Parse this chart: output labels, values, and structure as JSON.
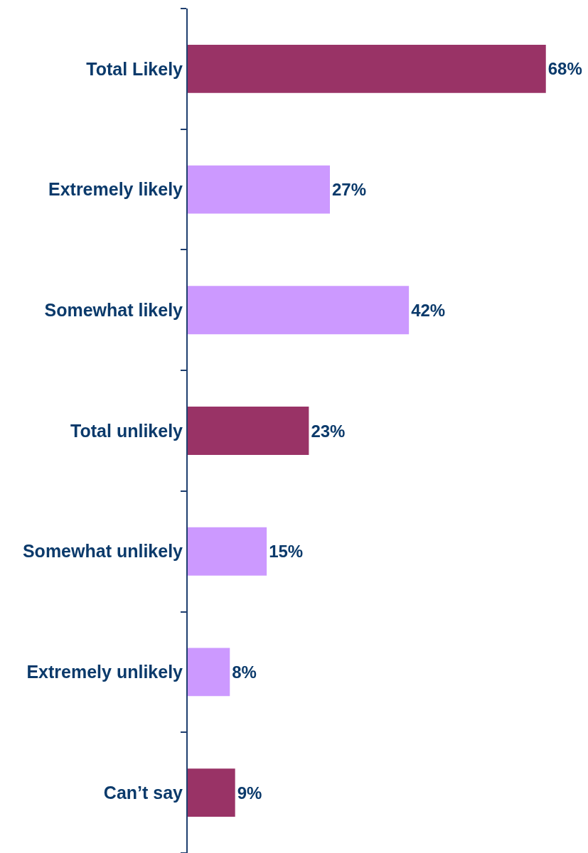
{
  "chart_data": {
    "type": "bar",
    "orientation": "horizontal",
    "categories": [
      "Total Likely",
      "Extremely likely",
      "Somewhat likely",
      "Total unlikely",
      "Somewhat unlikely",
      "Extremely unlikely",
      "Can’t say"
    ],
    "values": [
      68,
      27,
      42,
      23,
      15,
      8,
      9
    ],
    "colors": [
      "#993366",
      "#cc99ff",
      "#cc99ff",
      "#993366",
      "#cc99ff",
      "#cc99ff",
      "#993366"
    ],
    "value_labels": [
      "68%",
      "27%",
      "42%",
      "23%",
      "15%",
      "8%",
      "9%"
    ],
    "xlim": [
      0,
      76
    ],
    "tick_labels": "y"
  }
}
